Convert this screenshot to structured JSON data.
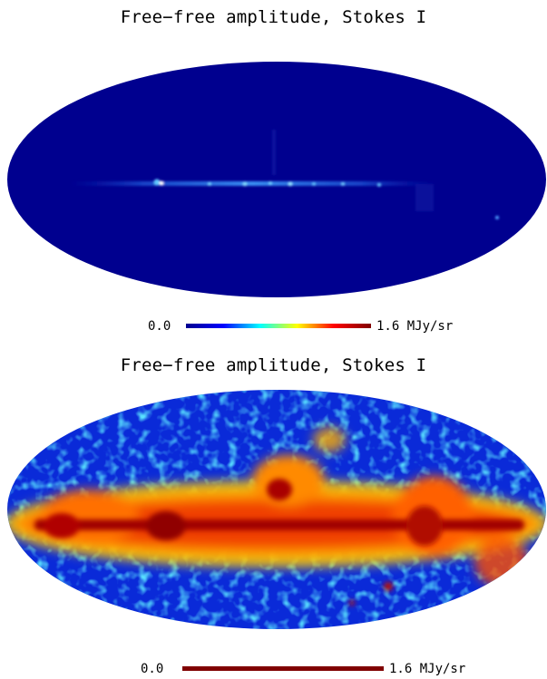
{
  "panels": [
    {
      "title": "Free−free amplitude, Stokes I",
      "scale": {
        "min_label": "0.0",
        "max_label": "1.6 MJy/sr",
        "min": 0.0,
        "max": 1.6,
        "unit": "MJy/sr",
        "colormap": "jet"
      },
      "projection": "mollweide",
      "stretch": "linear"
    },
    {
      "title": "Free−free amplitude, Stokes I",
      "scale": {
        "min_label": "0.0",
        "max_label": "1.6 MJy/sr",
        "min": 0.0,
        "max": 1.6,
        "unit": "MJy/sr",
        "colormap": "dark-red"
      },
      "projection": "mollweide",
      "stretch": "histogram-equalized"
    }
  ],
  "colors": {
    "background": "#ffffff",
    "map_low": "#00008f",
    "map_high": "#800000"
  }
}
